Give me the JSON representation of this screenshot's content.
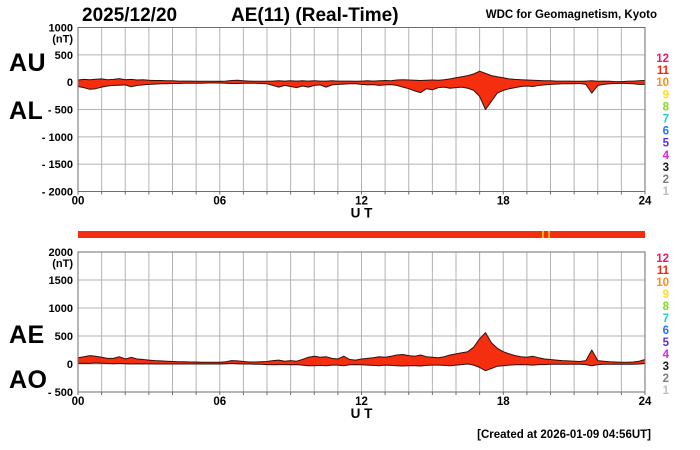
{
  "header": {
    "date": "2025/12/20",
    "title": "AE(11) (Real-Time)",
    "source": "WDC for Geomagnetism, Kyoto"
  },
  "footer": {
    "created_note": "[Created at 2026-01-09 04:56UT]"
  },
  "colors": {
    "data_fill": "#f62e10",
    "data_stroke": "#33100a",
    "grid": "#b3b3b3",
    "frame": "#6e6e6e",
    "text": "#000000",
    "bar_red": "#f62e10",
    "bar_mark": "#ffc400"
  },
  "station_count_scale": {
    "labels": [
      "12",
      "11",
      "10",
      "9",
      "8",
      "7",
      "6",
      "5",
      "4",
      "3",
      "2",
      "1"
    ],
    "colors": [
      "#e81868",
      "#f22810",
      "#ff8c14",
      "#ffdd22",
      "#7fdd1d",
      "#1fcfc7",
      "#2277f5",
      "#5533e0",
      "#e122e1",
      "#1a1a1a",
      "#7d7d7d",
      "#bdbdbd"
    ]
  },
  "availability_bar": {
    "color": "#f62e10",
    "marks": [
      {
        "hour": 19.68,
        "color": "#ffc400"
      },
      {
        "hour": 19.94,
        "color": "#ffc400"
      }
    ]
  },
  "chart_data": [
    {
      "type": "area",
      "name": "AU-AL",
      "title": "AU / AL auroral electrojet indices, 2025/12/20, 1-min values",
      "xlabel": "U T",
      "ylabel": "(nT)",
      "grid": true,
      "x_range_hours": [
        0,
        24
      ],
      "x_step_hours": 0.25,
      "xtick_hours": [
        0,
        6,
        12,
        18,
        24
      ],
      "xtick_labels": [
        "00",
        "06",
        "12",
        "18",
        "24"
      ],
      "ylim": [
        -2000,
        1000
      ],
      "yticks": [
        1000,
        500,
        0,
        -500,
        -1000,
        -1500,
        -2000
      ],
      "ytick_labels": [
        "1000",
        "500",
        "0",
        "- 500",
        "- 1000",
        "- 1500",
        "- 2000"
      ],
      "left_axis_labels": [
        "AU",
        "AL"
      ],
      "series": [
        {
          "name": "AU",
          "values": [
            40,
            50,
            45,
            55,
            60,
            45,
            50,
            65,
            45,
            50,
            40,
            45,
            35,
            30,
            30,
            25,
            25,
            20,
            20,
            20,
            18,
            15,
            15,
            15,
            15,
            20,
            30,
            35,
            25,
            20,
            15,
            15,
            15,
            20,
            25,
            20,
            25,
            20,
            25,
            20,
            25,
            20,
            20,
            25,
            20,
            20,
            20,
            15,
            20,
            25,
            20,
            25,
            30,
            25,
            40,
            45,
            40,
            35,
            30,
            35,
            40,
            35,
            45,
            60,
            80,
            100,
            120,
            150,
            200,
            160,
            120,
            100,
            80,
            60,
            50,
            45,
            40,
            35,
            30,
            25,
            25,
            20,
            20,
            20,
            15,
            15,
            20,
            25,
            15,
            20,
            15,
            10,
            10,
            15,
            20,
            25,
            30
          ]
        },
        {
          "name": "AL",
          "values": [
            -80,
            -100,
            -130,
            -120,
            -90,
            -70,
            -60,
            -55,
            -50,
            -85,
            -60,
            -50,
            -40,
            -35,
            -30,
            -30,
            -25,
            -25,
            -20,
            -20,
            -20,
            -18,
            -15,
            -15,
            -15,
            -20,
            -25,
            -25,
            -20,
            -20,
            -20,
            -25,
            -30,
            -60,
            -90,
            -60,
            -80,
            -100,
            -70,
            -90,
            -60,
            -50,
            -90,
            -50,
            -40,
            -35,
            -30,
            -30,
            -40,
            -50,
            -45,
            -60,
            -50,
            -45,
            -60,
            -90,
            -120,
            -160,
            -190,
            -120,
            -140,
            -100,
            -90,
            -110,
            -100,
            -90,
            -110,
            -150,
            -260,
            -500,
            -350,
            -200,
            -150,
            -120,
            -100,
            -80,
            -70,
            -80,
            -60,
            -50,
            -40,
            -35,
            -30,
            -30,
            -30,
            -25,
            -40,
            -200,
            -60,
            -40,
            -30,
            -25,
            -20,
            -25,
            -30,
            -40,
            -40
          ]
        }
      ]
    },
    {
      "type": "area",
      "name": "AE-AO",
      "title": "AE / AO auroral electrojet indices, 2025/12/20, 1-min values",
      "xlabel": "U T",
      "ylabel": "(nT)",
      "grid": true,
      "x_range_hours": [
        0,
        24
      ],
      "x_step_hours": 0.25,
      "xtick_hours": [
        0,
        6,
        12,
        18,
        24
      ],
      "xtick_labels": [
        "00",
        "06",
        "12",
        "18",
        "24"
      ],
      "ylim": [
        -500,
        2000
      ],
      "yticks": [
        2000,
        1500,
        1000,
        500,
        0,
        -500
      ],
      "ytick_labels": [
        "2000",
        "1500",
        "1000",
        "500",
        "0",
        "- 500"
      ],
      "left_axis_labels": [
        "AE",
        "AO"
      ],
      "series": [
        {
          "name": "AE",
          "values": [
            110,
            130,
            150,
            140,
            120,
            100,
            100,
            130,
            90,
            120,
            90,
            80,
            70,
            60,
            55,
            50,
            45,
            40,
            40,
            35,
            35,
            30,
            30,
            30,
            30,
            40,
            60,
            55,
            45,
            35,
            35,
            40,
            45,
            60,
            70,
            50,
            60,
            50,
            80,
            120,
            140,
            120,
            130,
            100,
            90,
            140,
            80,
            70,
            90,
            100,
            110,
            130,
            120,
            140,
            160,
            170,
            150,
            140,
            160,
            130,
            120,
            110,
            130,
            160,
            180,
            200,
            220,
            300,
            450,
            560,
            380,
            280,
            220,
            180,
            150,
            130,
            120,
            140,
            110,
            90,
            80,
            70,
            60,
            55,
            50,
            45,
            60,
            250,
            60,
            50,
            40,
            35,
            30,
            30,
            35,
            50,
            80
          ]
        },
        {
          "name": "AO",
          "values": [
            10,
            15,
            10,
            20,
            15,
            10,
            5,
            10,
            5,
            0,
            5,
            0,
            5,
            0,
            0,
            0,
            0,
            0,
            0,
            0,
            0,
            0,
            0,
            0,
            0,
            5,
            10,
            5,
            0,
            0,
            -5,
            -5,
            -10,
            -15,
            -10,
            -10,
            -15,
            -10,
            -20,
            -30,
            -30,
            -25,
            -30,
            -20,
            -20,
            -30,
            -15,
            -10,
            -15,
            -20,
            -25,
            -30,
            -20,
            -25,
            -30,
            -35,
            -30,
            -30,
            -35,
            -25,
            -20,
            -20,
            -25,
            -30,
            -20,
            -10,
            0,
            -20,
            -60,
            -120,
            -80,
            -40,
            -30,
            -20,
            -15,
            -10,
            -15,
            -20,
            -10,
            -10,
            -5,
            -5,
            -5,
            -5,
            -5,
            -5,
            -10,
            -30,
            -10,
            -5,
            -5,
            -5,
            -5,
            -5,
            -5,
            0,
            10
          ]
        }
      ]
    }
  ]
}
